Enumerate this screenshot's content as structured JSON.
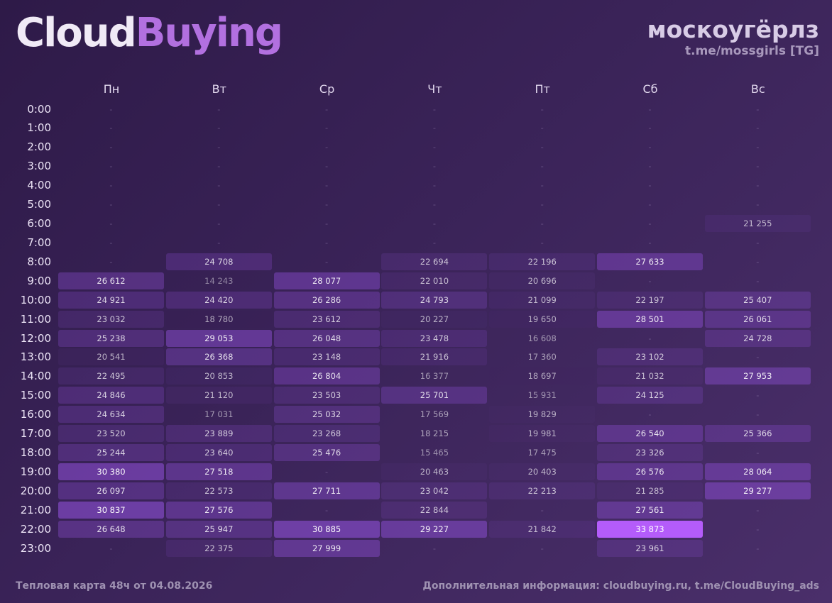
{
  "header": {
    "logo_part1": "Cloud",
    "logo_part2": "Buying",
    "brand_title": "москоугёрлз",
    "brand_link": "t.me/mossgirls [TG]"
  },
  "footer": {
    "left": "Тепловая карта 48ч от 04.08.2026",
    "right": "Дополнительная информация: cloudbuying.ru, t.me/CloudBuying_ads"
  },
  "colors": {
    "cell_base": "#8c4ed2",
    "cell_peak": "#b45cfa",
    "text_strong": "#ffffff",
    "text_faint": "#8f7fa6"
  },
  "chart_data": {
    "type": "heatmap",
    "x_categories": [
      "Пн",
      "Вт",
      "Ср",
      "Чт",
      "Пт",
      "Сб",
      "Вс"
    ],
    "y_categories": [
      "0:00",
      "1:00",
      "2:00",
      "3:00",
      "4:00",
      "5:00",
      "6:00",
      "7:00",
      "8:00",
      "9:00",
      "10:00",
      "11:00",
      "12:00",
      "13:00",
      "14:00",
      "15:00",
      "16:00",
      "17:00",
      "18:00",
      "19:00",
      "20:00",
      "21:00",
      "22:00",
      "23:00"
    ],
    "empty_label": "-",
    "values": [
      [
        null,
        null,
        null,
        null,
        null,
        null,
        null
      ],
      [
        null,
        null,
        null,
        null,
        null,
        null,
        null
      ],
      [
        null,
        null,
        null,
        null,
        null,
        null,
        null
      ],
      [
        null,
        null,
        null,
        null,
        null,
        null,
        null
      ],
      [
        null,
        null,
        null,
        null,
        null,
        null,
        null
      ],
      [
        null,
        null,
        null,
        null,
        null,
        null,
        null
      ],
      [
        null,
        null,
        null,
        null,
        null,
        null,
        21255
      ],
      [
        null,
        null,
        null,
        null,
        null,
        null,
        null
      ],
      [
        null,
        24708,
        null,
        22694,
        22196,
        27633,
        null
      ],
      [
        26612,
        14243,
        28077,
        22010,
        20696,
        null,
        null
      ],
      [
        24921,
        24420,
        26286,
        24793,
        21099,
        22197,
        25407
      ],
      [
        23032,
        18780,
        23612,
        20227,
        19650,
        28501,
        26061
      ],
      [
        25238,
        29053,
        26048,
        23478,
        16608,
        null,
        24728
      ],
      [
        20541,
        26368,
        23148,
        21916,
        17360,
        23102,
        null
      ],
      [
        22495,
        20853,
        26804,
        16377,
        18697,
        21032,
        27953
      ],
      [
        24846,
        21120,
        23503,
        25701,
        15931,
        24125,
        null
      ],
      [
        24634,
        17031,
        25032,
        17569,
        19829,
        null,
        null
      ],
      [
        23520,
        23889,
        23268,
        18215,
        19981,
        26540,
        25366
      ],
      [
        25244,
        23640,
        25476,
        15465,
        17475,
        23326,
        null
      ],
      [
        30380,
        27518,
        null,
        20463,
        20403,
        26576,
        28064
      ],
      [
        26097,
        22573,
        27711,
        23042,
        22213,
        21285,
        29277
      ],
      [
        30837,
        27576,
        null,
        22844,
        null,
        27561,
        null
      ],
      [
        26648,
        25947,
        30885,
        29227,
        21842,
        33873,
        null
      ],
      [
        null,
        22375,
        27999,
        null,
        null,
        23961,
        null
      ]
    ]
  }
}
